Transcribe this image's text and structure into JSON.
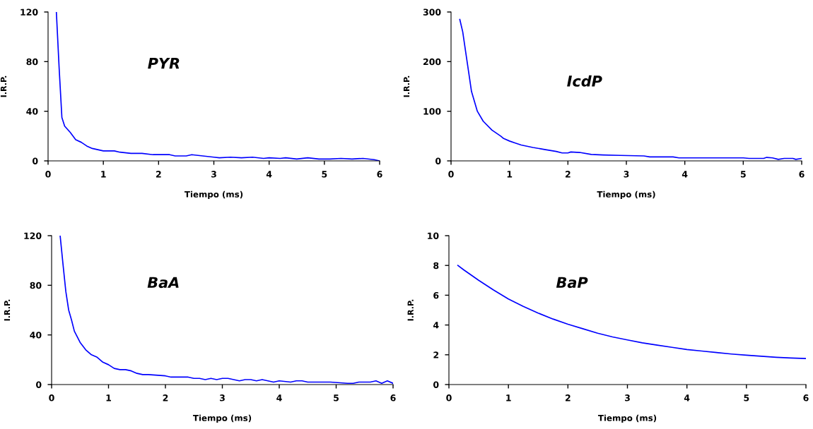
{
  "chart_data": [
    {
      "type": "line",
      "xlabel": "Tiempo (ms)",
      "ylabel": "I.R.P.",
      "annotations": [
        "PYR"
      ],
      "xlim": [
        0,
        6
      ],
      "xticks": [
        0,
        1,
        2,
        3,
        4,
        5,
        6
      ],
      "ylim": [
        0,
        120
      ],
      "yticks": [
        0,
        40,
        80,
        120
      ],
      "grid": false,
      "legend": false,
      "series": [
        {
          "color": "#0000ff",
          "x": [
            0.15,
            0.2,
            0.25,
            0.3,
            0.4,
            0.5,
            0.6,
            0.7,
            0.8,
            0.9,
            1.0,
            1.2,
            1.3,
            1.5,
            1.7,
            1.9,
            2.2,
            2.3,
            2.5,
            2.6,
            2.8,
            3.0,
            3.1,
            3.3,
            3.5,
            3.7,
            3.9,
            4.0,
            4.2,
            4.3,
            4.5,
            4.7,
            4.9,
            5.1,
            5.3,
            5.5,
            5.7,
            5.9,
            6.0
          ],
          "values": [
            120,
            75,
            35,
            28,
            23,
            17,
            15,
            12,
            10,
            9,
            8,
            8,
            7,
            6,
            6,
            5,
            5,
            4,
            4,
            5,
            4,
            3,
            2.5,
            3,
            2.5,
            3,
            2,
            2.5,
            2,
            2.5,
            1.5,
            2.5,
            1.5,
            1.5,
            2,
            1.5,
            2,
            1,
            0
          ]
        }
      ]
    },
    {
      "type": "line",
      "xlabel": "Tiempo (ms)",
      "ylabel": "I.R.P.",
      "annotations": [
        "IcdP"
      ],
      "xlim": [
        0,
        6
      ],
      "xticks": [
        0,
        1,
        2,
        3,
        4,
        5,
        6
      ],
      "ylim": [
        0,
        300
      ],
      "yticks": [
        0,
        100,
        200,
        300
      ],
      "grid": false,
      "legend": false,
      "series": [
        {
          "color": "#0000ff",
          "x": [
            0.15,
            0.2,
            0.25,
            0.3,
            0.35,
            0.45,
            0.55,
            0.7,
            0.85,
            0.9,
            1.0,
            1.1,
            1.2,
            1.4,
            1.6,
            1.8,
            1.9,
            2.0,
            2.05,
            2.2,
            2.4,
            2.6,
            2.9,
            3.3,
            3.4,
            3.8,
            3.9,
            5.0,
            5.1,
            5.35,
            5.4,
            5.5,
            5.6,
            5.7,
            5.85,
            5.9,
            6.0
          ],
          "values": [
            285,
            260,
            220,
            180,
            140,
            100,
            80,
            62,
            50,
            45,
            40,
            36,
            32,
            27,
            23,
            19,
            16,
            16,
            18,
            17,
            13,
            12,
            11,
            10,
            8,
            8,
            6,
            6,
            5,
            5,
            7,
            6,
            3,
            5,
            5,
            3,
            5
          ]
        }
      ]
    },
    {
      "type": "line",
      "xlabel": "Tiempo (ms)",
      "ylabel": "I.R.P.",
      "annotations": [
        "BaA"
      ],
      "xlim": [
        0,
        6
      ],
      "xticks": [
        0,
        1,
        2,
        3,
        4,
        5,
        6
      ],
      "ylim": [
        0,
        120
      ],
      "yticks": [
        0,
        40,
        80,
        120
      ],
      "grid": false,
      "legend": false,
      "series": [
        {
          "color": "#0000ff",
          "x": [
            0.15,
            0.2,
            0.25,
            0.3,
            0.35,
            0.4,
            0.5,
            0.6,
            0.7,
            0.8,
            0.9,
            1.0,
            1.1,
            1.2,
            1.3,
            1.4,
            1.5,
            1.6,
            1.7,
            2.0,
            2.1,
            2.4,
            2.5,
            2.6,
            2.7,
            2.8,
            2.9,
            3.0,
            3.1,
            3.2,
            3.3,
            3.4,
            3.5,
            3.6,
            3.7,
            3.8,
            3.9,
            4.0,
            4.2,
            4.3,
            4.4,
            4.5,
            4.9,
            5.2,
            5.3,
            5.4,
            5.6,
            5.7,
            5.8,
            5.9,
            6.0
          ],
          "values": [
            120,
            97,
            75,
            60,
            52,
            43,
            34,
            28,
            24,
            22,
            18,
            16,
            13,
            12,
            12,
            11,
            9,
            8,
            8,
            7,
            6,
            6,
            5,
            5,
            4,
            5,
            4,
            5,
            5,
            4,
            3,
            4,
            4,
            3,
            4,
            3,
            2,
            3,
            2,
            3,
            3,
            2,
            2,
            1,
            1,
            2,
            2,
            3,
            1,
            3,
            1
          ]
        }
      ]
    },
    {
      "type": "line",
      "xlabel": "Tiempo (ms)",
      "ylabel": "I.R.P.",
      "annotations": [
        "BaP"
      ],
      "xlim": [
        0,
        6
      ],
      "xticks": [
        0,
        1,
        2,
        3,
        4,
        5,
        6
      ],
      "ylim": [
        0,
        10
      ],
      "yticks": [
        0,
        2,
        4,
        6,
        8,
        10
      ],
      "grid": false,
      "legend": false,
      "series": [
        {
          "color": "#0000ff",
          "x": [
            0.15,
            0.25,
            0.5,
            0.75,
            1.0,
            1.25,
            1.5,
            1.75,
            2.0,
            2.25,
            2.5,
            2.75,
            3.0,
            3.25,
            3.5,
            3.75,
            4.0,
            4.25,
            4.5,
            4.75,
            5.0,
            5.25,
            5.5,
            5.75,
            6.0
          ],
          "values": [
            8.0,
            7.7,
            7.0,
            6.35,
            5.75,
            5.25,
            4.8,
            4.4,
            4.05,
            3.75,
            3.45,
            3.2,
            3.0,
            2.8,
            2.65,
            2.5,
            2.35,
            2.25,
            2.15,
            2.05,
            1.97,
            1.9,
            1.83,
            1.78,
            1.75
          ]
        }
      ]
    }
  ]
}
